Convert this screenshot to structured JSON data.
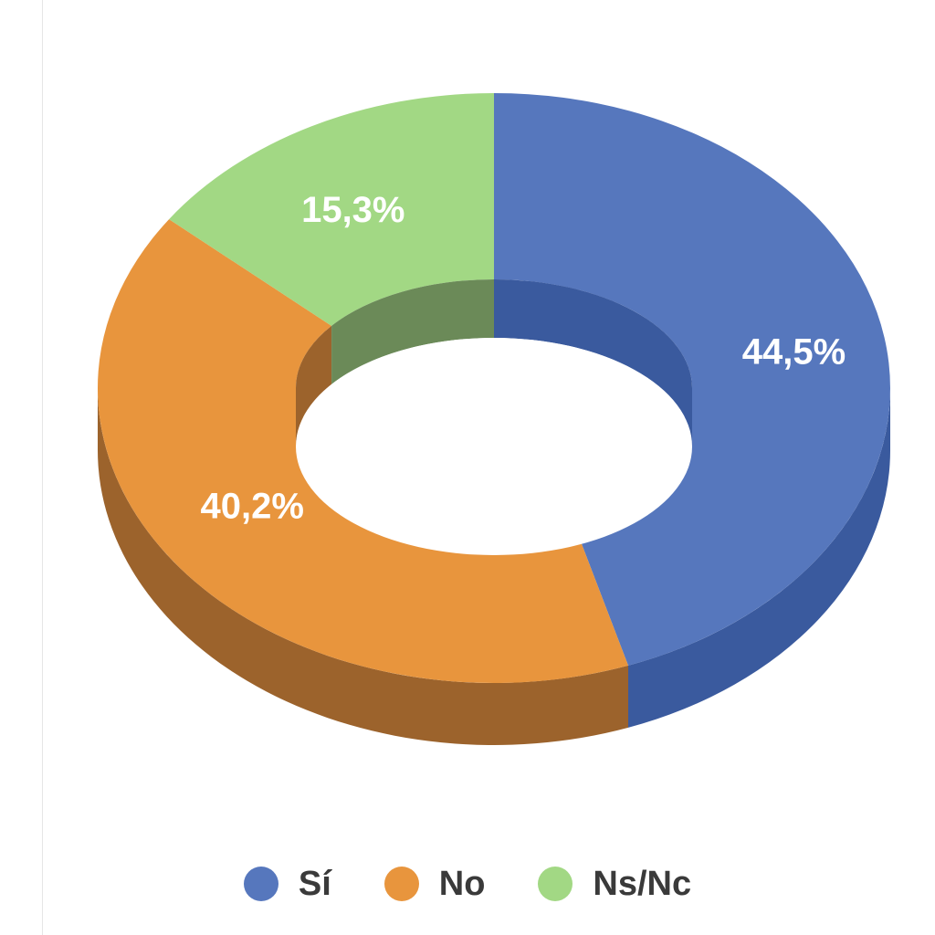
{
  "chart_data": {
    "type": "pie",
    "style": "3d-donut",
    "categories": [
      "Sí",
      "No",
      "Ns/Nc"
    ],
    "values": [
      44.5,
      40.2,
      15.3
    ],
    "value_labels": [
      "44,5%",
      "40,2%",
      "15,3%"
    ],
    "colors": [
      "#5677bd",
      "#e8953d",
      "#a2d884"
    ],
    "side_colors": [
      "#3a5a9e",
      "#9c632c",
      "#6b8a58"
    ],
    "legend_position": "bottom",
    "start": "top",
    "direction": "clockwise"
  },
  "legend": {
    "items": [
      {
        "label": "Sí",
        "color": "#5677bd"
      },
      {
        "label": "No",
        "color": "#e8953d"
      },
      {
        "label": "Ns/Nc",
        "color": "#a2d884"
      }
    ]
  }
}
